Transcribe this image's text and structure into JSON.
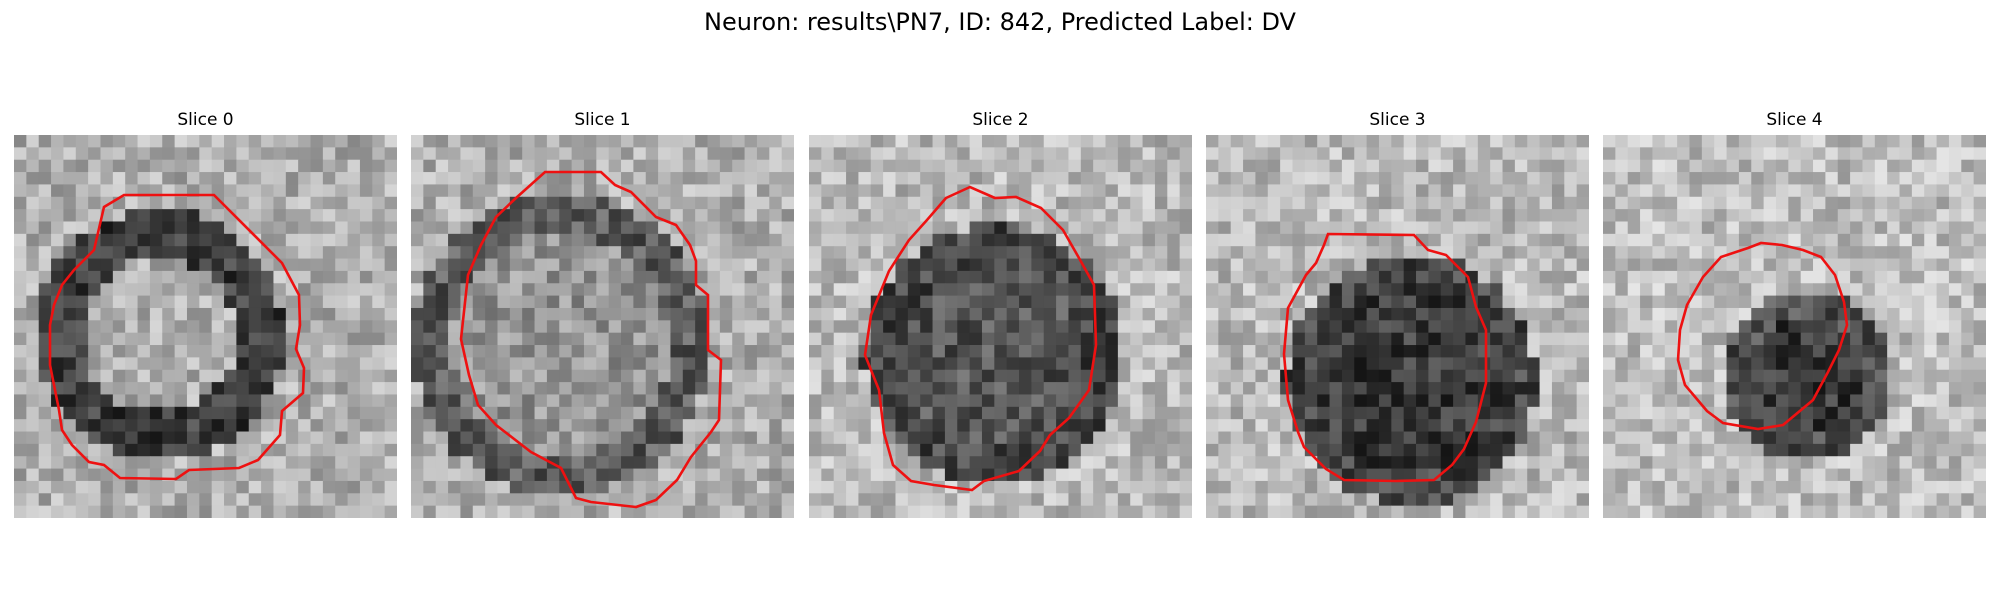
{
  "figure": {
    "title": "Neuron: results\\PN7, ID: 842, Predicted Label: DV"
  },
  "contour_color": "#ee1111",
  "panels": [
    {
      "title": "Slice 0",
      "subject": "ring-shaped cell body, dark membrane ring with bright interior",
      "contour": "octagonal boundary around ring"
    },
    {
      "title": "Slice 1",
      "subject": "large round cell body, medium grey interior",
      "contour": "large rounded octagon with dip at bottom"
    },
    {
      "title": "Slice 2",
      "subject": "dark round cell body, darker lower half",
      "contour": "large rounded octagon"
    },
    {
      "title": "Slice 3",
      "subject": "dark speckled cell body, lower right",
      "contour": "octagonal boundary, lower center"
    },
    {
      "title": "Slice 4",
      "subject": "small dark cell body, right of center",
      "contour": "small octagon with notch at top"
    }
  ]
}
